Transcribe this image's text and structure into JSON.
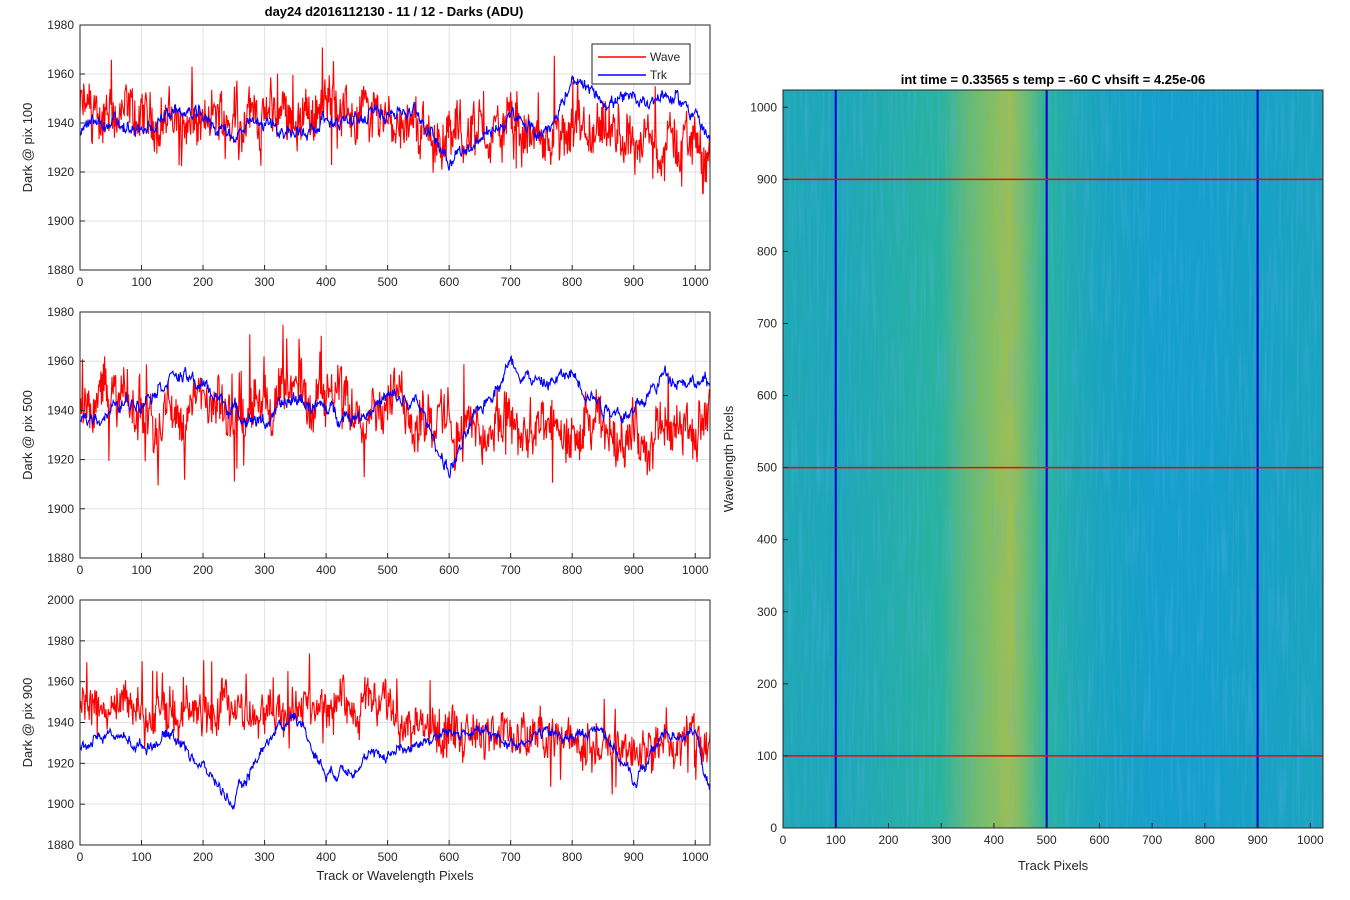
{
  "figure": {
    "title": "day24 d2016112130 - 11 / 12 - Darks (ADU)"
  },
  "colors": {
    "wave": "#ff0000",
    "trk": "#0000ff",
    "grid": "#e2e2e2",
    "axis": "#262626",
    "hline": "#ff0000",
    "vline": "#0000cc"
  },
  "chart_data": [
    {
      "type": "line",
      "ylabel": "Dark @ pix 100",
      "xlim": [
        0,
        1024
      ],
      "ylim": [
        1880,
        1980
      ],
      "xticks": [
        0,
        100,
        200,
        300,
        400,
        500,
        600,
        700,
        800,
        900,
        1000
      ],
      "yticks": [
        1880,
        1900,
        1920,
        1940,
        1960,
        1980
      ],
      "grid": true,
      "legend_position": "top-right",
      "series": [
        {
          "name": "Wave",
          "color": "#ff0000",
          "x": [
            0,
            50,
            100,
            150,
            200,
            250,
            300,
            350,
            400,
            450,
            500,
            550,
            600,
            650,
            700,
            750,
            800,
            850,
            900,
            950,
            1000,
            1024
          ],
          "y": [
            1945,
            1942,
            1940,
            1943,
            1938,
            1945,
            1942,
            1944,
            1946,
            1944,
            1945,
            1938,
            1934,
            1936,
            1938,
            1932,
            1930,
            1932,
            1933,
            1930,
            1935,
            1925
          ],
          "noise": 10
        },
        {
          "name": "Trk",
          "color": "#0000ff",
          "x": [
            0,
            50,
            100,
            150,
            200,
            250,
            300,
            350,
            400,
            450,
            500,
            550,
            600,
            650,
            700,
            750,
            800,
            850,
            900,
            950,
            1000,
            1024
          ],
          "y": [
            1938,
            1940,
            1935,
            1945,
            1942,
            1935,
            1940,
            1935,
            1942,
            1940,
            1946,
            1944,
            1926,
            1933,
            1942,
            1935,
            1955,
            1950,
            1948,
            1952,
            1945,
            1930
          ],
          "noise": 4
        }
      ]
    },
    {
      "type": "line",
      "ylabel": "Dark @ pix 500",
      "xlim": [
        0,
        1024
      ],
      "ylim": [
        1880,
        1980
      ],
      "xticks": [
        0,
        100,
        200,
        300,
        400,
        500,
        600,
        700,
        800,
        900,
        1000
      ],
      "yticks": [
        1880,
        1900,
        1920,
        1940,
        1960,
        1980
      ],
      "grid": true,
      "series": [
        {
          "name": "Wave",
          "color": "#ff0000",
          "x": [
            0,
            50,
            100,
            150,
            200,
            250,
            300,
            350,
            400,
            450,
            500,
            550,
            600,
            650,
            700,
            750,
            800,
            850,
            900,
            950,
            1000,
            1024
          ],
          "y": [
            1942,
            1945,
            1940,
            1938,
            1942,
            1935,
            1945,
            1945,
            1948,
            1944,
            1945,
            1938,
            1935,
            1930,
            1933,
            1930,
            1928,
            1932,
            1930,
            1930,
            1932,
            1930
          ],
          "noise": 10
        },
        {
          "name": "Trk",
          "color": "#0000ff",
          "x": [
            0,
            50,
            100,
            150,
            200,
            250,
            300,
            350,
            400,
            450,
            500,
            550,
            600,
            650,
            700,
            750,
            800,
            850,
            900,
            950,
            1000,
            1024
          ],
          "y": [
            1935,
            1940,
            1945,
            1955,
            1950,
            1940,
            1935,
            1945,
            1940,
            1938,
            1945,
            1942,
            1915,
            1940,
            1960,
            1950,
            1955,
            1942,
            1938,
            1955,
            1952,
            1950
          ],
          "noise": 4
        }
      ]
    },
    {
      "type": "line",
      "ylabel": "Dark @ pix 900",
      "xlabel": "Track or Wavelength Pixels",
      "xlim": [
        0,
        1024
      ],
      "ylim": [
        1880,
        2000
      ],
      "xticks": [
        0,
        100,
        200,
        300,
        400,
        500,
        600,
        700,
        800,
        900,
        1000
      ],
      "yticks": [
        1880,
        1900,
        1920,
        1940,
        1960,
        1980,
        2000
      ],
      "grid": true,
      "series": [
        {
          "name": "Wave",
          "color": "#ff0000",
          "x": [
            0,
            50,
            100,
            150,
            200,
            250,
            300,
            350,
            400,
            450,
            500,
            550,
            600,
            650,
            700,
            750,
            800,
            850,
            900,
            950,
            1000,
            1024
          ],
          "y": [
            1945,
            1948,
            1945,
            1942,
            1944,
            1946,
            1945,
            1948,
            1950,
            1950,
            1948,
            1938,
            1936,
            1935,
            1935,
            1930,
            1928,
            1930,
            1925,
            1928,
            1932,
            1928
          ],
          "noise": 10
        },
        {
          "name": "Trk",
          "color": "#0000ff",
          "x": [
            0,
            50,
            100,
            150,
            200,
            250,
            300,
            350,
            400,
            450,
            500,
            550,
            600,
            650,
            700,
            750,
            800,
            850,
            900,
            950,
            1000,
            1024
          ],
          "y": [
            1930,
            1935,
            1928,
            1935,
            1918,
            1900,
            1930,
            1945,
            1915,
            1920,
            1925,
            1930,
            1935,
            1935,
            1930,
            1935,
            1932,
            1938,
            1910,
            1935,
            1935,
            1905
          ],
          "noise": 4
        }
      ]
    },
    {
      "type": "heatmap",
      "title": "int time = 0.33565 s    temp = -60 C    vhsift = 4.25e-06",
      "xlabel": "Track Pixels",
      "ylabel": "Wavelength Pixels",
      "xlim": [
        0,
        1024
      ],
      "ylim": [
        0,
        1024
      ],
      "xticks": [
        0,
        100,
        200,
        300,
        400,
        500,
        600,
        700,
        800,
        900,
        1000
      ],
      "yticks": [
        0,
        100,
        200,
        300,
        400,
        500,
        600,
        700,
        800,
        900,
        1000
      ],
      "colormap": "parula",
      "column_profile": {
        "x": [
          0,
          100,
          200,
          300,
          350,
          400,
          430,
          460,
          500,
          550,
          600,
          700,
          800,
          900,
          1000,
          1024
        ],
        "level": [
          0.42,
          0.4,
          0.45,
          0.5,
          0.6,
          0.66,
          0.7,
          0.62,
          0.5,
          0.42,
          0.38,
          0.34,
          0.34,
          0.36,
          0.38,
          0.38
        ]
      },
      "vlines": [
        100,
        500,
        900
      ],
      "hlines": [
        100,
        500,
        900
      ]
    }
  ]
}
